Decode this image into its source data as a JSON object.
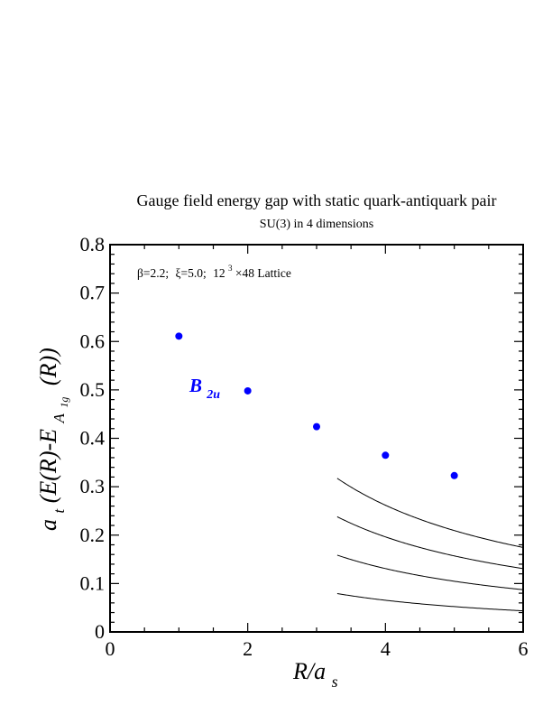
{
  "chart_data": {
    "type": "scatter",
    "title": "Gauge field energy gap with static quark-antiquark pair",
    "subtitle": "SU(3) in 4 dimensions",
    "annotation": {
      "beta": "β=2.2;",
      "xi": "ξ=5.0;",
      "lattice_base": "12",
      "lattice_exp": "3",
      "lattice_rest": "×48 Lattice"
    },
    "series_label": {
      "main": "B",
      "sub": "2u",
      "color": "#0000ff"
    },
    "xlabel": {
      "main": "R/a",
      "sub": "s"
    },
    "ylabel": {
      "prefix": "a",
      "prefix_sub": "t",
      "mid": "(E(R)-E",
      "sub1": "A",
      "sub2": "1g",
      "suffix": "(R))"
    },
    "xlim": [
      0,
      6
    ],
    "ylim": [
      0,
      0.8
    ],
    "x_ticks": [
      0,
      2,
      4,
      6
    ],
    "y_ticks": [
      "0",
      "0.1",
      "0.2",
      "0.3",
      "0.4",
      "0.5",
      "0.6",
      "0.7",
      "0.8"
    ],
    "grid": false,
    "points": [
      {
        "x": 1,
        "y": 0.611
      },
      {
        "x": 2,
        "y": 0.498
      },
      {
        "x": 3,
        "y": 0.424
      },
      {
        "x": 4,
        "y": 0.365
      },
      {
        "x": 5,
        "y": 0.323
      }
    ],
    "point_color": "#0000ff",
    "reference_curves": [
      {
        "n": 1,
        "x_start": 3.3
      },
      {
        "n": 2,
        "x_start": 3.3
      },
      {
        "n": 3,
        "x_start": 3.3
      },
      {
        "n": 4,
        "x_start": 3.3
      }
    ]
  }
}
